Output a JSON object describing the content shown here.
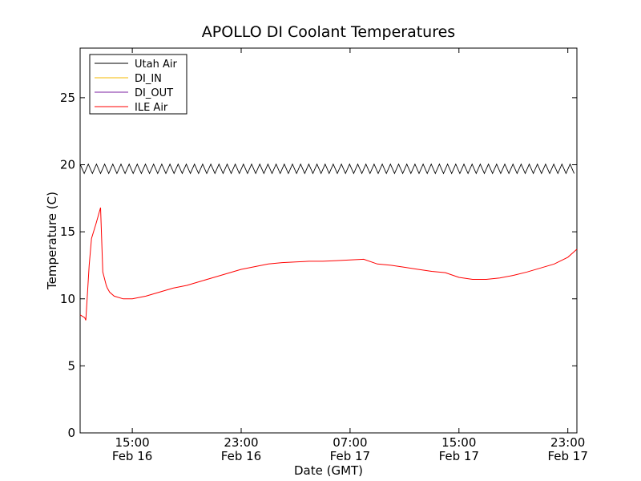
{
  "chart_data": {
    "type": "line",
    "title": "APOLLO DI Coolant Temperatures",
    "xlabel": "Date (GMT)",
    "ylabel": "Temperature (C)",
    "x_unit": "hours",
    "xlim": [
      "2024-02-16 11:10",
      "2024-02-17 23:40"
    ],
    "ylim": [
      0,
      28.7
    ],
    "yticks": [
      0,
      5,
      10,
      15,
      20,
      25
    ],
    "xticks": [
      {
        "x": "2024-02-16 15:00",
        "time": "15:00",
        "date": "Feb 16"
      },
      {
        "x": "2024-02-16 23:00",
        "time": "23:00",
        "date": "Feb 16"
      },
      {
        "x": "2024-02-17 07:00",
        "time": "07:00",
        "date": "Feb 17"
      },
      {
        "x": "2024-02-17 15:00",
        "time": "15:00",
        "date": "Feb 17"
      },
      {
        "x": "2024-02-17 23:00",
        "time": "23:00",
        "date": "Feb 17"
      }
    ],
    "grid": false,
    "legend_position": "top-left",
    "series": [
      {
        "name": "Utah Air",
        "color": "#000000",
        "style": "oscillating",
        "x": [
          "2024-02-16 11:10",
          "2024-02-17 23:40"
        ],
        "values": [
          19.7,
          19.7
        ],
        "amplitude": 0.35
      },
      {
        "name": "DI_IN",
        "color": "#f5b800",
        "x": [],
        "values": []
      },
      {
        "name": "DI_OUT",
        "color": "#7b1fa2",
        "x": [],
        "values": []
      },
      {
        "name": "ILE Air",
        "color": "#ff0000",
        "style": "solid",
        "x": [
          "2024-02-16 11:10",
          "2024-02-16 11:30",
          "2024-02-16 11:35",
          "2024-02-16 11:50",
          "2024-02-16 12:00",
          "2024-02-16 12:20",
          "2024-02-16 12:40",
          "2024-02-16 12:50",
          "2024-02-16 13:05",
          "2024-02-16 13:10",
          "2024-02-16 13:20",
          "2024-02-16 13:40",
          "2024-02-16 14:20",
          "2024-02-16 15:00",
          "2024-02-16 16:00",
          "2024-02-16 17:00",
          "2024-02-16 18:00",
          "2024-02-16 19:00",
          "2024-02-16 20:00",
          "2024-02-16 21:00",
          "2024-02-16 22:00",
          "2024-02-16 23:00",
          "2024-02-17 00:00",
          "2024-02-17 01:00",
          "2024-02-17 02:00",
          "2024-02-17 03:00",
          "2024-02-17 04:00",
          "2024-02-17 05:00",
          "2024-02-17 06:00",
          "2024-02-17 07:00",
          "2024-02-17 08:00",
          "2024-02-17 09:00",
          "2024-02-17 10:00",
          "2024-02-17 11:00",
          "2024-02-17 12:00",
          "2024-02-17 13:00",
          "2024-02-17 14:00",
          "2024-02-17 15:00",
          "2024-02-17 16:00",
          "2024-02-17 17:00",
          "2024-02-17 18:00",
          "2024-02-17 19:00",
          "2024-02-17 20:00",
          "2024-02-17 21:00",
          "2024-02-17 22:00",
          "2024-02-17 23:00",
          "2024-02-17 23:40"
        ],
        "values": [
          8.8,
          8.6,
          8.4,
          12.5,
          14.5,
          15.6,
          16.8,
          12.0,
          11.0,
          10.8,
          10.5,
          10.2,
          10.0,
          10.0,
          10.2,
          10.5,
          10.8,
          11.0,
          11.3,
          11.6,
          11.9,
          12.2,
          12.4,
          12.6,
          12.7,
          12.75,
          12.8,
          12.8,
          12.85,
          12.9,
          12.95,
          12.6,
          12.5,
          12.35,
          12.2,
          12.05,
          11.95,
          11.6,
          11.45,
          11.45,
          11.55,
          11.75,
          12.0,
          12.3,
          12.6,
          13.1,
          13.7
        ]
      }
    ]
  }
}
